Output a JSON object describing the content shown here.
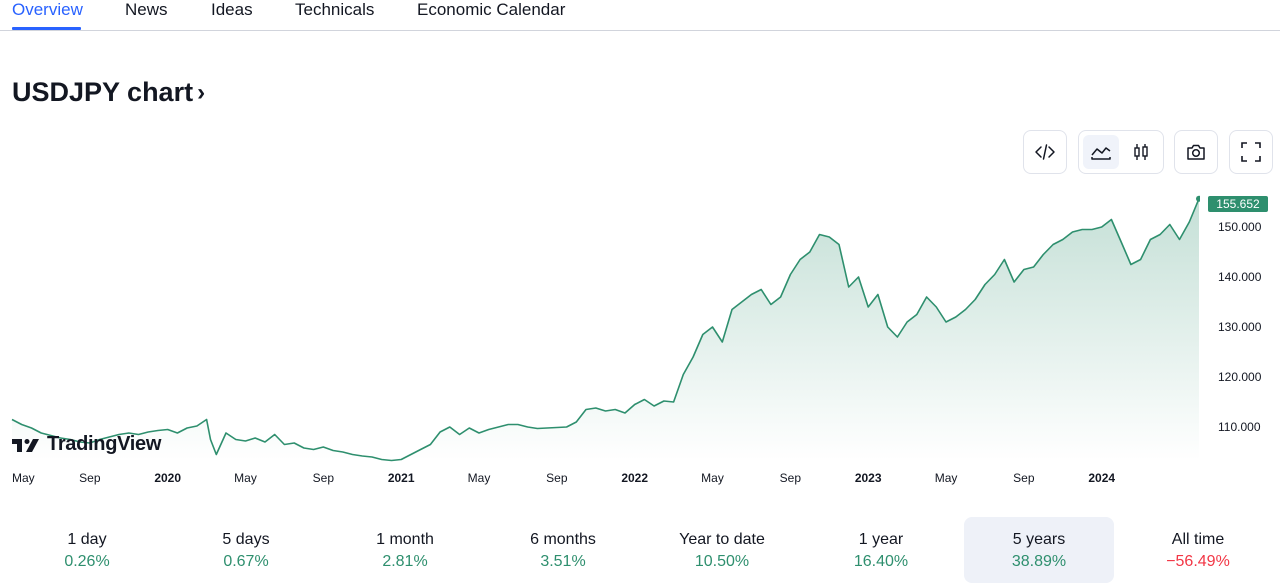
{
  "tabs": [
    {
      "label": "Overview",
      "active": true
    },
    {
      "label": "News"
    },
    {
      "label": "Ideas"
    },
    {
      "label": "Technicals"
    },
    {
      "label": "Economic Calendar"
    }
  ],
  "page": {
    "title": "USDJPY chart",
    "title_chevron": "›"
  },
  "toolbar": [
    {
      "name": "embed-icon"
    },
    {
      "name": "line-chart-icon",
      "active": true
    },
    {
      "name": "candles-icon"
    },
    {
      "name": "camera-icon"
    },
    {
      "name": "fullscreen-icon"
    }
  ],
  "logo_text": "TradingView",
  "colors": {
    "accent": "#2962ff",
    "line": "#2e8f6e",
    "positive": "#2e8f6e",
    "negative": "#f23645"
  },
  "chart_data": {
    "type": "area",
    "symbol": "USDJPY",
    "last_price": "155.652",
    "y_ticks": [
      "150.000",
      "140.000",
      "130.000",
      "120.000",
      "110.000"
    ],
    "y_tick_values": [
      150,
      140,
      130,
      120,
      110
    ],
    "ylim": [
      103,
      155.652
    ],
    "x_ticks": [
      {
        "label": "May",
        "bold": false,
        "t": 0
      },
      {
        "label": "Sep",
        "bold": false,
        "t": 4
      },
      {
        "label": "2020",
        "bold": true,
        "t": 8
      },
      {
        "label": "May",
        "bold": false,
        "t": 12
      },
      {
        "label": "Sep",
        "bold": false,
        "t": 16
      },
      {
        "label": "2021",
        "bold": true,
        "t": 20
      },
      {
        "label": "May",
        "bold": false,
        "t": 24
      },
      {
        "label": "Sep",
        "bold": false,
        "t": 28
      },
      {
        "label": "2022",
        "bold": true,
        "t": 32
      },
      {
        "label": "May",
        "bold": false,
        "t": 36
      },
      {
        "label": "Sep",
        "bold": false,
        "t": 40
      },
      {
        "label": "2023",
        "bold": true,
        "t": 44
      },
      {
        "label": "May",
        "bold": false,
        "t": 48
      },
      {
        "label": "Sep",
        "bold": false,
        "t": 52
      },
      {
        "label": "2024",
        "bold": true,
        "t": 56
      }
    ],
    "t_range": [
      0,
      61
    ],
    "series": [
      {
        "name": "USDJPY",
        "points": [
          [
            0,
            111.5
          ],
          [
            0.5,
            110.5
          ],
          [
            1,
            109.8
          ],
          [
            1.5,
            108.8
          ],
          [
            2,
            108.3
          ],
          [
            2.5,
            107.8
          ],
          [
            3,
            107.5
          ],
          [
            3.5,
            107.0
          ],
          [
            4,
            106.8
          ],
          [
            4.5,
            107.5
          ],
          [
            5,
            108.0
          ],
          [
            5.5,
            108.5
          ],
          [
            6,
            108.8
          ],
          [
            6.5,
            108.5
          ],
          [
            7,
            109.0
          ],
          [
            7.5,
            109.3
          ],
          [
            8,
            109.5
          ],
          [
            8.5,
            108.8
          ],
          [
            9,
            109.8
          ],
          [
            9.5,
            110.2
          ],
          [
            10,
            111.5
          ],
          [
            10.2,
            107.5
          ],
          [
            10.5,
            104.5
          ],
          [
            11,
            108.8
          ],
          [
            11.5,
            107.5
          ],
          [
            12,
            107.2
          ],
          [
            12.5,
            107.8
          ],
          [
            13,
            107.0
          ],
          [
            13.5,
            108.5
          ],
          [
            14,
            106.5
          ],
          [
            14.5,
            106.8
          ],
          [
            15,
            105.8
          ],
          [
            15.5,
            105.5
          ],
          [
            16,
            106.0
          ],
          [
            16.5,
            105.3
          ],
          [
            17,
            105.0
          ],
          [
            17.5,
            104.5
          ],
          [
            18,
            104.2
          ],
          [
            18.5,
            104.0
          ],
          [
            19,
            103.5
          ],
          [
            19.5,
            103.3
          ],
          [
            20,
            103.5
          ],
          [
            20.5,
            104.5
          ],
          [
            21,
            105.5
          ],
          [
            21.5,
            106.5
          ],
          [
            22,
            109.0
          ],
          [
            22.5,
            110.0
          ],
          [
            23,
            108.5
          ],
          [
            23.5,
            109.8
          ],
          [
            24,
            108.8
          ],
          [
            24.5,
            109.5
          ],
          [
            25,
            110.0
          ],
          [
            25.5,
            110.5
          ],
          [
            26,
            110.5
          ],
          [
            26.5,
            110.0
          ],
          [
            27,
            109.7
          ],
          [
            27.5,
            109.8
          ],
          [
            28,
            109.9
          ],
          [
            28.5,
            110.0
          ],
          [
            29,
            111.0
          ],
          [
            29.5,
            113.5
          ],
          [
            30,
            113.8
          ],
          [
            30.5,
            113.2
          ],
          [
            31,
            113.5
          ],
          [
            31.5,
            112.8
          ],
          [
            32,
            114.5
          ],
          [
            32.5,
            115.5
          ],
          [
            33,
            114.2
          ],
          [
            33.5,
            115.2
          ],
          [
            34,
            115.0
          ],
          [
            34.5,
            120.5
          ],
          [
            35,
            124.0
          ],
          [
            35.5,
            128.5
          ],
          [
            36,
            130.0
          ],
          [
            36.5,
            127.0
          ],
          [
            37,
            133.5
          ],
          [
            37.5,
            135.0
          ],
          [
            38,
            136.5
          ],
          [
            38.5,
            137.5
          ],
          [
            39,
            134.5
          ],
          [
            39.5,
            136.0
          ],
          [
            40,
            140.5
          ],
          [
            40.5,
            143.5
          ],
          [
            41,
            145.0
          ],
          [
            41.5,
            148.5
          ],
          [
            42,
            148.0
          ],
          [
            42.5,
            146.5
          ],
          [
            43,
            138.0
          ],
          [
            43.5,
            140.0
          ],
          [
            44,
            134.0
          ],
          [
            44.5,
            136.5
          ],
          [
            45,
            130.0
          ],
          [
            45.5,
            128.0
          ],
          [
            46,
            131.0
          ],
          [
            46.5,
            132.5
          ],
          [
            47,
            136.0
          ],
          [
            47.5,
            134.0
          ],
          [
            48,
            131.0
          ],
          [
            48.5,
            132.0
          ],
          [
            49,
            133.5
          ],
          [
            49.5,
            135.5
          ],
          [
            50,
            138.5
          ],
          [
            50.5,
            140.5
          ],
          [
            51,
            143.5
          ],
          [
            51.5,
            139.0
          ],
          [
            52,
            141.5
          ],
          [
            52.5,
            142.0
          ],
          [
            53,
            144.5
          ],
          [
            53.5,
            146.5
          ],
          [
            54,
            147.5
          ],
          [
            54.5,
            149.0
          ],
          [
            55,
            149.5
          ],
          [
            55.5,
            149.5
          ],
          [
            56,
            150.0
          ],
          [
            56.5,
            151.5
          ],
          [
            57,
            147.0
          ],
          [
            57.5,
            142.5
          ],
          [
            58,
            143.5
          ],
          [
            58.5,
            147.5
          ],
          [
            59,
            148.5
          ],
          [
            59.5,
            150.5
          ],
          [
            60,
            147.5
          ],
          [
            60.5,
            151.0
          ],
          [
            61,
            155.652
          ]
        ]
      }
    ]
  },
  "periods": [
    {
      "label": "1 day",
      "value": "0.26%",
      "sign": "pos"
    },
    {
      "label": "5 days",
      "value": "0.67%",
      "sign": "pos"
    },
    {
      "label": "1 month",
      "value": "2.81%",
      "sign": "pos"
    },
    {
      "label": "6 months",
      "value": "3.51%",
      "sign": "pos"
    },
    {
      "label": "Year to date",
      "value": "10.50%",
      "sign": "pos"
    },
    {
      "label": "1 year",
      "value": "16.40%",
      "sign": "pos"
    },
    {
      "label": "5 years",
      "value": "38.89%",
      "sign": "pos",
      "active": true
    },
    {
      "label": "All time",
      "value": "−56.49%",
      "sign": "neg"
    }
  ]
}
